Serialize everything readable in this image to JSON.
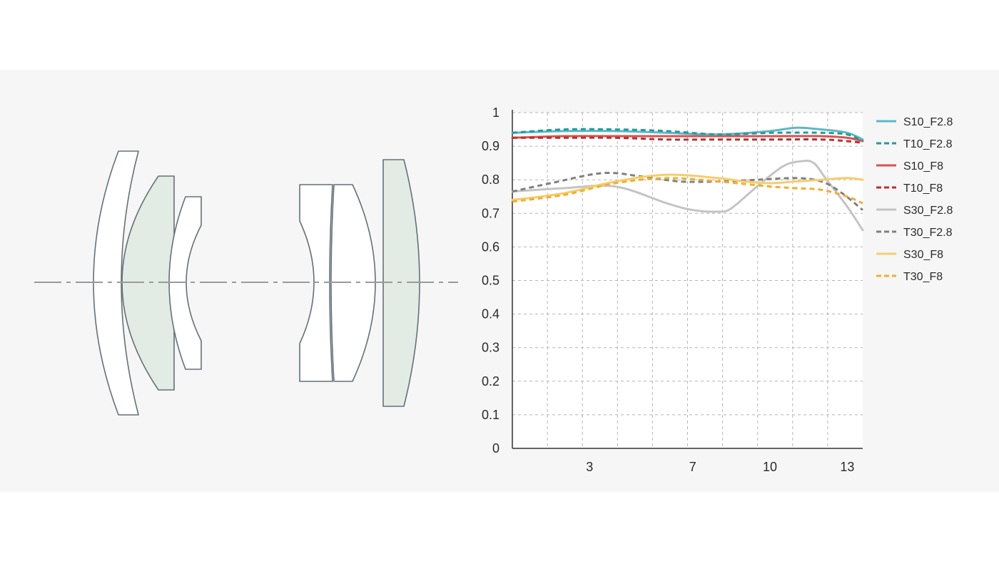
{
  "lens_diagram": {
    "element_color": "#ffffff",
    "tinted_element_color": "#e2ebe4",
    "outline_color": "#65717a",
    "axis_color": "#9a9a9a"
  },
  "chart_data": {
    "type": "line",
    "title": "",
    "xlabel": "",
    "ylabel": "",
    "xlim": [
      0,
      13.6
    ],
    "ylim": [
      0,
      1
    ],
    "x_ticks": [
      3,
      7,
      10,
      13
    ],
    "y_ticks": [
      0,
      0.1,
      0.2,
      0.3,
      0.4,
      0.5,
      0.6,
      0.7,
      0.8,
      0.9,
      1
    ],
    "y_tick_labels": [
      "0",
      "0.1",
      "0.2",
      "0.3",
      "0.4",
      "0.5",
      "0.6",
      "0.7",
      "0.8",
      "0.9",
      "1"
    ],
    "grid": true,
    "legend_position": "right",
    "series": [
      {
        "name": "S10_F2.8",
        "style": "solid",
        "color": "#5fb7c1",
        "x": [
          0,
          2,
          4,
          6,
          8,
          10,
          11,
          12,
          13,
          13.6
        ],
        "y": [
          0.94,
          0.945,
          0.945,
          0.94,
          0.935,
          0.945,
          0.955,
          0.95,
          0.94,
          0.92
        ]
      },
      {
        "name": "T10_F2.8",
        "style": "dashed",
        "color": "#1f9aa3",
        "x": [
          0,
          2,
          4,
          6,
          8,
          10,
          12,
          13,
          13.6
        ],
        "y": [
          0.94,
          0.95,
          0.95,
          0.945,
          0.935,
          0.94,
          0.94,
          0.935,
          0.915
        ]
      },
      {
        "name": "S10_F8",
        "style": "solid",
        "color": "#d9534f",
        "x": [
          0,
          2,
          4,
          6,
          8,
          10,
          12,
          13,
          13.6
        ],
        "y": [
          0.925,
          0.93,
          0.93,
          0.93,
          0.93,
          0.93,
          0.93,
          0.925,
          0.915
        ]
      },
      {
        "name": "T10_F8",
        "style": "dashed",
        "color": "#b8302e",
        "x": [
          0,
          2,
          4,
          6,
          8,
          10,
          12,
          13,
          13.6
        ],
        "y": [
          0.925,
          0.925,
          0.925,
          0.92,
          0.92,
          0.92,
          0.92,
          0.915,
          0.91
        ]
      },
      {
        "name": "S30_F2.8",
        "style": "solid",
        "color": "#c4c4c4",
        "x": [
          0,
          2,
          4,
          6,
          7,
          8,
          8.5,
          9.5,
          10.5,
          11.2,
          11.7,
          12.2,
          13,
          13.6
        ],
        "y": [
          0.765,
          0.775,
          0.78,
          0.73,
          0.71,
          0.705,
          0.715,
          0.78,
          0.84,
          0.855,
          0.85,
          0.8,
          0.72,
          0.65
        ]
      },
      {
        "name": "T30_F2.8",
        "style": "dashed",
        "color": "#808080",
        "x": [
          0,
          1.5,
          3.5,
          5,
          6.5,
          8,
          9.5,
          11,
          12,
          12.8,
          13.6
        ],
        "y": [
          0.765,
          0.79,
          0.82,
          0.81,
          0.795,
          0.795,
          0.8,
          0.805,
          0.795,
          0.76,
          0.71
        ]
      },
      {
        "name": "S30_F8",
        "style": "solid",
        "color": "#f6cd6c",
        "x": [
          0,
          2,
          4,
          6,
          8,
          9,
          10,
          11,
          12,
          13,
          13.6
        ],
        "y": [
          0.74,
          0.76,
          0.795,
          0.815,
          0.805,
          0.795,
          0.79,
          0.795,
          0.8,
          0.805,
          0.8
        ]
      },
      {
        "name": "T30_F8",
        "style": "dashed",
        "color": "#f2ae2e",
        "x": [
          0,
          2,
          4,
          6,
          8,
          10,
          11,
          12,
          13,
          13.6
        ],
        "y": [
          0.735,
          0.755,
          0.79,
          0.805,
          0.795,
          0.78,
          0.775,
          0.77,
          0.75,
          0.73
        ]
      }
    ]
  }
}
